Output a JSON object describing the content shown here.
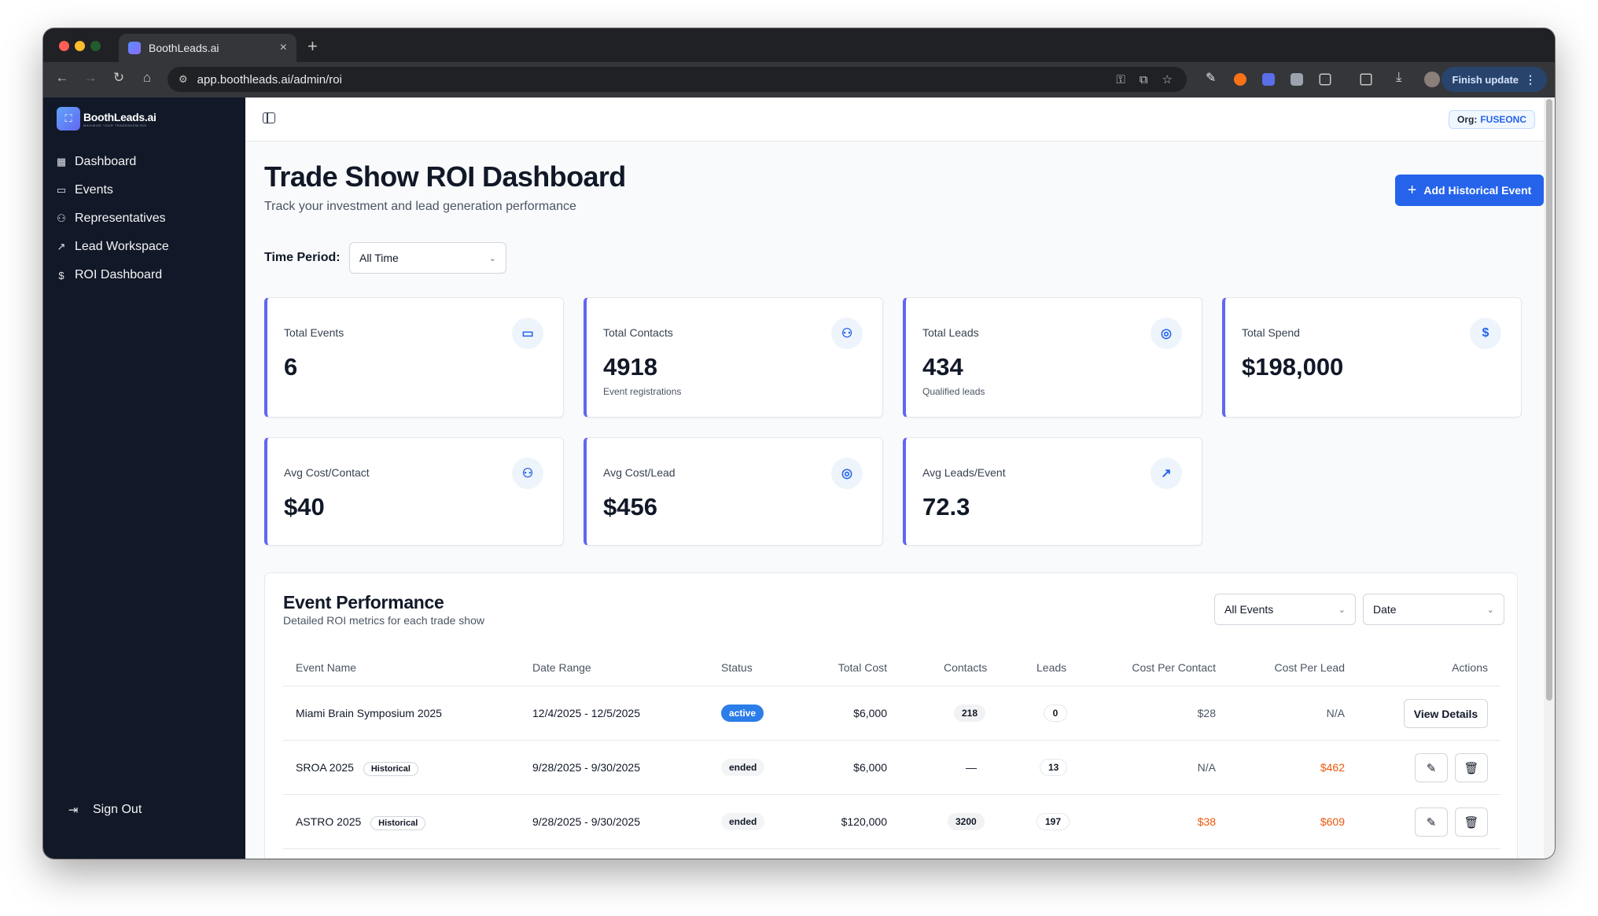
{
  "browser": {
    "tab_title": "BoothLeads.ai",
    "tab_close": "×",
    "new_tab": "+",
    "url": "app.boothleads.ai/admin/roi",
    "finish_update": "Finish update"
  },
  "sidebar": {
    "brand_name": "BoothLeads.ai",
    "brand_tagline": "MAXIMIZE YOUR TRADESHOW ROI",
    "items": [
      {
        "label": "Dashboard",
        "icon": "grid-icon"
      },
      {
        "label": "Events",
        "icon": "calendar-icon"
      },
      {
        "label": "Representatives",
        "icon": "users-icon"
      },
      {
        "label": "Lead Workspace",
        "icon": "trending-up-icon"
      },
      {
        "label": "ROI Dashboard",
        "icon": "dollar-icon"
      }
    ],
    "sign_out": "Sign Out"
  },
  "topbar": {
    "org_label": "Org:",
    "org_value": "FUSEONC"
  },
  "header": {
    "title": "Trade Show ROI Dashboard",
    "subtitle": "Track your investment and lead generation performance",
    "add_button": "Add Historical Event"
  },
  "filters": {
    "time_period_label": "Time Period:",
    "time_period_value": "All Time"
  },
  "stats": [
    {
      "label": "Total Events",
      "value": "6",
      "sub": "",
      "icon": "calendar-icon"
    },
    {
      "label": "Total Contacts",
      "value": "4918",
      "sub": "Event registrations",
      "icon": "users-icon"
    },
    {
      "label": "Total Leads",
      "value": "434",
      "sub": "Qualified leads",
      "icon": "target-icon"
    },
    {
      "label": "Total Spend",
      "value": "$198,000",
      "sub": "",
      "icon": "dollar-icon"
    },
    {
      "label": "Avg Cost/Contact",
      "value": "$40",
      "sub": "",
      "icon": "users-icon"
    },
    {
      "label": "Avg Cost/Lead",
      "value": "$456",
      "sub": "",
      "icon": "target-icon"
    },
    {
      "label": "Avg Leads/Event",
      "value": "72.3",
      "sub": "",
      "icon": "trending-up-icon"
    }
  ],
  "performance": {
    "title": "Event Performance",
    "subtitle": "Detailed ROI metrics for each trade show",
    "filter_events": "All Events",
    "sort_by": "Date",
    "columns": [
      "Event Name",
      "Date Range",
      "Status",
      "Total Cost",
      "Contacts",
      "Leads",
      "Cost Per Contact",
      "Cost Per Lead",
      "Actions"
    ],
    "rows": [
      {
        "name": "Miami Brain Symposium 2025",
        "badge": "",
        "dates": "12/4/2025 - 12/5/2025",
        "status": "active",
        "cost": "$6,000",
        "contacts": "218",
        "leads": "0",
        "cpc": "$28",
        "cpl": "N/A",
        "action": "View Details"
      },
      {
        "name": "SROA 2025",
        "badge": "Historical",
        "dates": "9/28/2025 - 9/30/2025",
        "status": "ended",
        "cost": "$6,000",
        "contacts": "—",
        "leads": "13",
        "cpc": "N/A",
        "cpl": "$462",
        "action": ""
      },
      {
        "name": "ASTRO 2025",
        "badge": "Historical",
        "dates": "9/28/2025 - 9/30/2025",
        "status": "ended",
        "cost": "$120,000",
        "contacts": "3200",
        "leads": "197",
        "cpc": "$38",
        "cpl": "$609",
        "action": ""
      }
    ]
  },
  "colors": {
    "primary": "#2563eb",
    "sidebar_bg": "#111827",
    "accent_border": "#6366f1",
    "warning": "#ea580c"
  }
}
